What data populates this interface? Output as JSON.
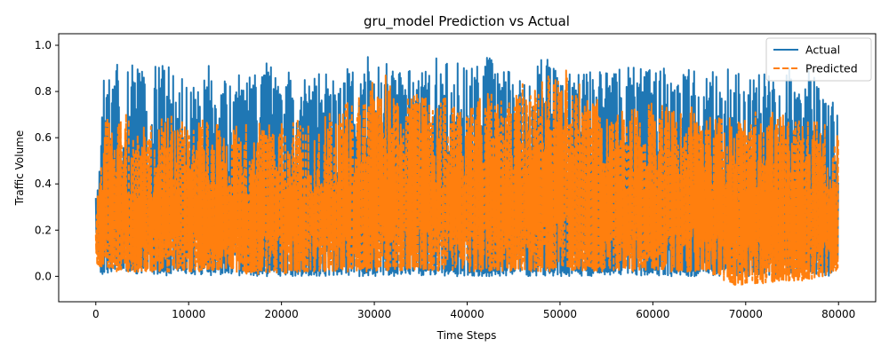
{
  "chart_data": {
    "type": "line",
    "title": "gru_model Prediction vs Actual",
    "xlabel": "Time Steps",
    "ylabel": "Traffic Volume",
    "xlim": [
      -4000,
      84000
    ],
    "ylim": [
      -0.11,
      1.05
    ],
    "xticks": [
      0,
      10000,
      20000,
      30000,
      40000,
      50000,
      60000,
      70000,
      80000
    ],
    "xtick_labels": [
      "0",
      "10000",
      "20000",
      "30000",
      "40000",
      "50000",
      "60000",
      "70000",
      "80000"
    ],
    "yticks": [
      0.0,
      0.2,
      0.4,
      0.6,
      0.8,
      1.0
    ],
    "ytick_labels": [
      "0.0",
      "0.2",
      "0.4",
      "0.6",
      "0.8",
      "1.0"
    ],
    "grid": false,
    "legend_position": "upper right",
    "n_points": 80000,
    "series": [
      {
        "name": "Actual",
        "color": "#1f77b4",
        "style": "solid",
        "x": [
          0,
          500,
          1000,
          2000,
          3000,
          4000,
          6000,
          8000,
          10000,
          12000,
          14000,
          16000,
          18000,
          20000,
          22000,
          24000,
          26000,
          28000,
          30000,
          32000,
          34000,
          36000,
          38000,
          40000,
          42000,
          44000,
          46000,
          48000,
          50000,
          52000,
          54000,
          56000,
          58000,
          60000,
          62000,
          64000,
          66000,
          68000,
          70000,
          72000,
          74000,
          76000,
          78000,
          80000
        ],
        "max": [
          0.37,
          0.55,
          1.0,
          0.95,
          0.94,
          0.93,
          0.92,
          0.93,
          0.93,
          0.92,
          0.89,
          0.9,
          0.93,
          0.89,
          0.88,
          0.88,
          0.88,
          0.97,
          0.97,
          0.93,
          0.89,
          0.94,
          0.95,
          0.9,
          0.96,
          0.9,
          0.96,
          0.96,
          0.91,
          0.88,
          0.89,
          0.9,
          0.92,
          0.92,
          0.9,
          0.9,
          0.87,
          0.94,
          0.88,
          0.88,
          0.91,
          0.89,
          0.89,
          0.72
        ],
        "min": [
          0.16,
          0.01,
          0.01,
          0.01,
          0.01,
          0.01,
          0.01,
          0.0,
          0.01,
          0.0,
          0.0,
          0.0,
          0.0,
          0.0,
          0.0,
          0.0,
          0.0,
          0.0,
          0.0,
          0.0,
          0.0,
          0.0,
          0.0,
          0.0,
          0.0,
          0.0,
          0.0,
          0.0,
          0.0,
          0.0,
          0.0,
          0.0,
          0.0,
          0.0,
          0.0,
          0.0,
          0.0,
          0.0,
          0.0,
          0.0,
          0.0,
          0.0,
          0.0,
          0.0
        ]
      },
      {
        "name": "Predicted",
        "color": "#ff7f0e",
        "style": "dashed",
        "x": [
          0,
          500,
          1000,
          2000,
          3000,
          4000,
          6000,
          8000,
          10000,
          12000,
          14000,
          16000,
          18000,
          20000,
          22000,
          24000,
          26000,
          28000,
          30000,
          32000,
          34000,
          36000,
          38000,
          40000,
          42000,
          44000,
          46000,
          48000,
          50000,
          52000,
          54000,
          56000,
          58000,
          60000,
          62000,
          64000,
          66000,
          68000,
          70000,
          72000,
          74000,
          76000,
          78000,
          80000
        ],
        "max": [
          0.3,
          0.45,
          0.7,
          0.71,
          0.77,
          0.62,
          0.67,
          0.72,
          0.68,
          0.68,
          0.65,
          0.66,
          0.7,
          0.66,
          0.7,
          0.67,
          0.75,
          0.8,
          0.86,
          0.88,
          0.8,
          0.79,
          0.78,
          0.72,
          0.82,
          0.75,
          0.87,
          0.86,
          0.93,
          0.9,
          0.77,
          0.75,
          0.77,
          0.76,
          0.72,
          0.75,
          0.7,
          0.7,
          0.73,
          0.71,
          0.74,
          0.68,
          0.68,
          0.62
        ],
        "min": [
          0.05,
          0.04,
          0.03,
          0.02,
          0.02,
          0.02,
          0.02,
          0.02,
          0.02,
          0.02,
          0.02,
          0.01,
          0.01,
          0.01,
          0.02,
          0.02,
          0.02,
          0.02,
          0.02,
          0.02,
          0.02,
          0.02,
          0.02,
          0.02,
          0.02,
          0.02,
          0.02,
          0.02,
          0.02,
          0.02,
          0.02,
          0.02,
          0.02,
          0.02,
          0.02,
          0.02,
          0.02,
          -0.03,
          -0.05,
          -0.03,
          -0.02,
          -0.02,
          -0.01,
          0.03
        ]
      }
    ]
  }
}
